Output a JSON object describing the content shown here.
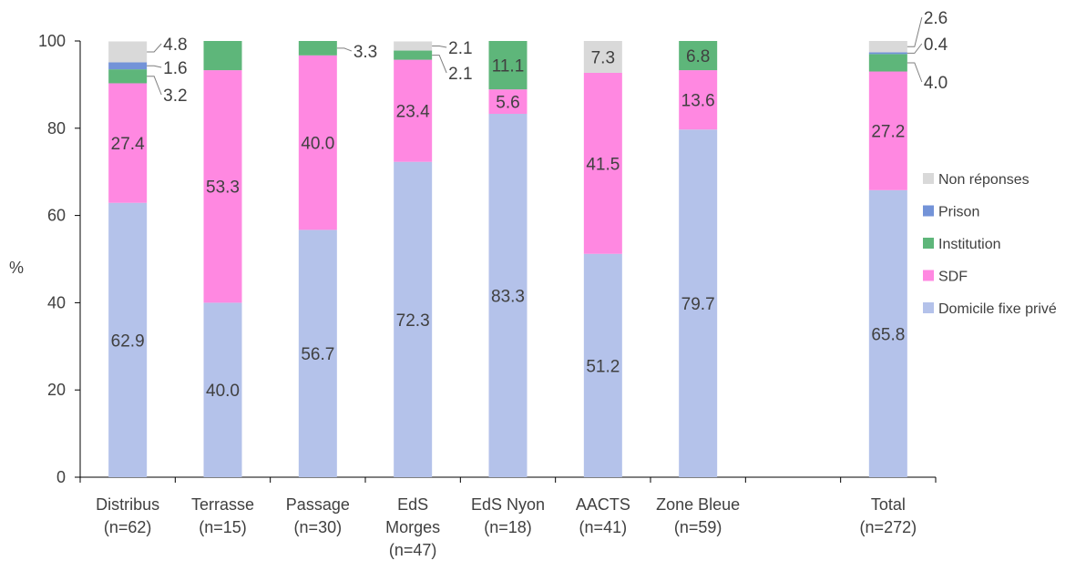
{
  "chart_data": {
    "type": "bar",
    "stacked": true,
    "ylabel": "%",
    "ylim": [
      0,
      100
    ],
    "yticks": [
      0,
      20,
      40,
      60,
      80,
      100
    ],
    "grid": false,
    "legend_position": "right",
    "categories": [
      {
        "line1": "Distribus",
        "line2": "(n=62)",
        "line3": ""
      },
      {
        "line1": "Terrasse",
        "line2": "(n=15)",
        "line3": ""
      },
      {
        "line1": "Passage",
        "line2": "(n=30)",
        "line3": ""
      },
      {
        "line1": "EdS",
        "line2": "Morges",
        "line3": "(n=47)"
      },
      {
        "line1": "EdS Nyon",
        "line2": "(n=18)",
        "line3": ""
      },
      {
        "line1": "AACTS",
        "line2": "(n=41)",
        "line3": ""
      },
      {
        "line1": "Zone Bleue",
        "line2": "(n=59)",
        "line3": ""
      },
      {
        "line1": "",
        "line2": "",
        "line3": ""
      },
      {
        "line1": "Total",
        "line2": "(n=272)",
        "line3": ""
      }
    ],
    "series": [
      {
        "name": "Domicile fixe privé",
        "color": "#B4C2EA",
        "values": [
          62.9,
          40.0,
          56.7,
          72.3,
          83.3,
          51.2,
          79.7,
          null,
          65.8
        ],
        "labels": [
          "62.9",
          "40.0",
          "56.7",
          "72.3",
          "83.3",
          "51.2",
          "79.7",
          "",
          "65.8"
        ]
      },
      {
        "name": "SDF",
        "color": "#FF88E1",
        "values": [
          27.4,
          53.3,
          40.0,
          23.4,
          5.6,
          41.5,
          13.6,
          null,
          27.2
        ],
        "labels": [
          "27.4",
          "53.3",
          "40.0",
          "23.4",
          "5.6",
          "41.5",
          "13.6",
          "",
          "27.2"
        ]
      },
      {
        "name": "Institution",
        "color": "#5EB67A",
        "values": [
          3.2,
          6.7,
          3.3,
          2.1,
          11.1,
          0,
          6.8,
          null,
          4.0
        ],
        "labels": [
          "3.2",
          "",
          "3.3",
          "2.1",
          "11.1",
          "",
          "6.8",
          "",
          "4.0"
        ]
      },
      {
        "name": "Prison",
        "color": "#7393D8",
        "values": [
          1.6,
          0,
          0,
          0,
          0,
          0,
          0,
          null,
          0.4
        ],
        "labels": [
          "1.6",
          "",
          "",
          "",
          "",
          "",
          "",
          "",
          "0.4"
        ]
      },
      {
        "name": "Non réponses",
        "color": "#D9D9D9",
        "values": [
          4.8,
          0,
          0,
          2.1,
          0,
          7.3,
          0,
          null,
          2.6
        ],
        "labels": [
          "4.8",
          "",
          "",
          "2.1",
          "",
          "7.3",
          "",
          "",
          "2.6"
        ]
      }
    ]
  }
}
